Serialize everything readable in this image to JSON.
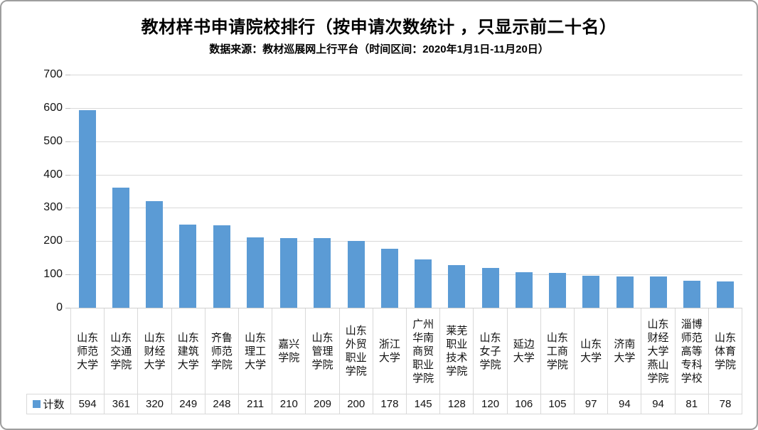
{
  "header": {
    "title": "教材样书申请院校排行（按申请次数统计 ，只显示前二十名）",
    "subtitle": "数据来源：教材巡展网上行平台（时间区间：2020年1月1日-11月20日）"
  },
  "legend": {
    "series_label": "计数"
  },
  "chart_data": {
    "type": "bar",
    "title": "教材样书申请院校排行（按申请次数统计 ，只显示前二十名）",
    "subtitle": "数据来源：教材巡展网上行平台（时间区间：2020年1月1日-11月20日）",
    "categories": [
      "山东师范大学",
      "山东交通学院",
      "山东财经大学",
      "山东建筑大学",
      "齐鲁师范学院",
      "山东理工大学",
      "嘉兴学院",
      "山东管理学院",
      "山东外贸职业学院",
      "浙江大学",
      "广州华南商贸职业学院",
      "莱芜职业技术学院",
      "山东女子学院",
      "延边大学",
      "山东工商学院",
      "山东大学",
      "济南大学",
      "山东财经大学燕山学院",
      "淄博师范高等专科学校",
      "山东体育学院"
    ],
    "series": [
      {
        "name": "计数",
        "values": [
          594,
          361,
          320,
          249,
          248,
          211,
          210,
          209,
          200,
          178,
          145,
          128,
          120,
          106,
          105,
          97,
          94,
          94,
          81,
          78
        ]
      }
    ],
    "xlabel": "",
    "ylabel": "",
    "ylim": [
      0,
      700
    ],
    "yticks": [
      0,
      100,
      200,
      300,
      400,
      500,
      600,
      700
    ],
    "grid": true,
    "legend_position": "data-table-bottom-left",
    "data_table_shown": true,
    "bar_color": "#5b9bd5",
    "gridline_color": "#d9d9d9"
  },
  "colors": {
    "bar": "#5b9bd5",
    "gridline": "#d9d9d9",
    "table_border": "#d9d9d9",
    "frame_border": "#9e9e9e",
    "text": "#111111"
  }
}
